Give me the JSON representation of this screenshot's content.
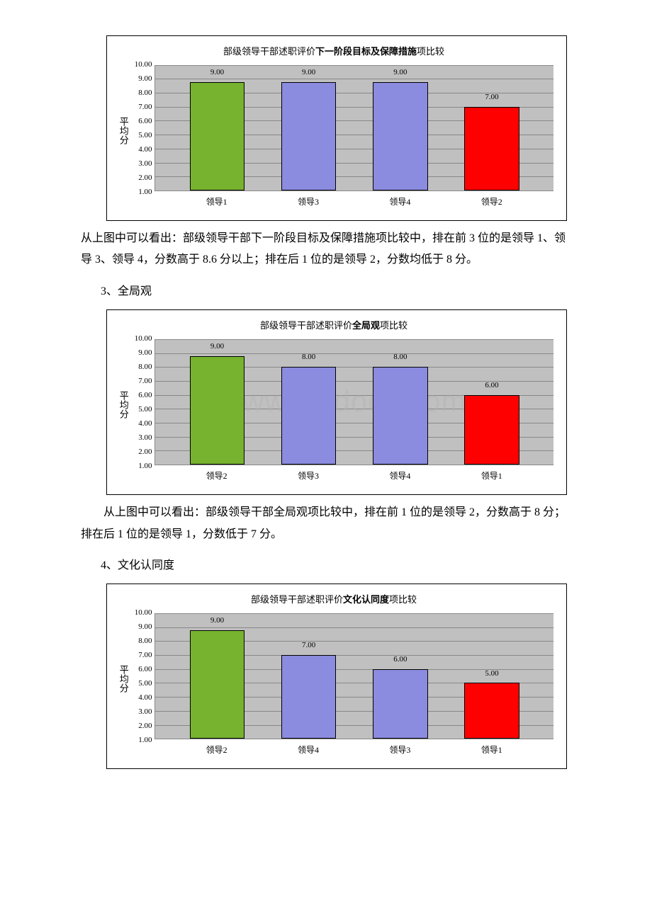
{
  "colors": {
    "green": "#77b32f",
    "blue": "#8b8bdf",
    "red": "#ff0000",
    "plot_bg": "#c0c0c0",
    "grid": "#888888",
    "border": "#000000"
  },
  "chart1": {
    "title_prefix": "部级领导干部述职评价",
    "title_bold": "下一阶段目标及保障措施",
    "title_suffix": "项比较",
    "ylabel": "平均分",
    "ymin": 1.0,
    "ymax": 10.0,
    "yticks": [
      "10.00",
      "9.00",
      "8.00",
      "7.00",
      "6.00",
      "5.00",
      "4.00",
      "3.00",
      "2.00",
      "1.00"
    ],
    "categories": [
      "领导1",
      "领导3",
      "领导4",
      "领导2"
    ],
    "values": [
      9.0,
      9.0,
      9.0,
      7.0
    ],
    "value_labels": [
      "9.00",
      "9.00",
      "9.00",
      "7.00"
    ],
    "bar_color_keys": [
      "green",
      "blue",
      "blue",
      "red"
    ]
  },
  "para1": "从上图中可以看出：部级领导干部下一阶段目标及保障措施项比较中，排在前 3 位的是领导 1、领导 3、领导 4，分数高于 8.6 分以上；排在后 1 位的是领导 2，分数均低于 8 分。",
  "heading3": "3、全局观",
  "chart2": {
    "title_prefix": "部级领导干部述职评价",
    "title_bold": "全局观",
    "title_suffix": "项比较",
    "ylabel": "平均分",
    "ymin": 1.0,
    "ymax": 10.0,
    "yticks": [
      "10.00",
      "9.00",
      "8.00",
      "7.00",
      "6.00",
      "5.00",
      "4.00",
      "3.00",
      "2.00",
      "1.00"
    ],
    "categories": [
      "领导2",
      "领导3",
      "领导4",
      "领导1"
    ],
    "values": [
      9.0,
      8.0,
      8.0,
      6.0
    ],
    "value_labels": [
      "9.00",
      "8.00",
      "8.00",
      "6.00"
    ],
    "bar_color_keys": [
      "green",
      "blue",
      "blue",
      "red"
    ],
    "watermark": "www.bdocx.com"
  },
  "para2": "从上图中可以看出：部级领导干部全局观项比较中，排在前 1 位的是领导 2，分数高于 8 分；排在后 1 位的是领导 1，分数低于 7 分。",
  "heading4": "4、文化认同度",
  "chart3": {
    "title_prefix": "部级领导干部述职评价",
    "title_bold": "文化认同度",
    "title_suffix": "项比较",
    "ylabel": "平均分",
    "ymin": 1.0,
    "ymax": 10.0,
    "yticks": [
      "10.00",
      "9.00",
      "8.00",
      "7.00",
      "6.00",
      "5.00",
      "4.00",
      "3.00",
      "2.00",
      "1.00"
    ],
    "categories": [
      "领导2",
      "领导4",
      "领导3",
      "领导1"
    ],
    "values": [
      9.0,
      7.0,
      6.0,
      5.0
    ],
    "value_labels": [
      "9.00",
      "7.00",
      "6.00",
      "5.00"
    ],
    "bar_color_keys": [
      "green",
      "blue",
      "blue",
      "red"
    ]
  }
}
